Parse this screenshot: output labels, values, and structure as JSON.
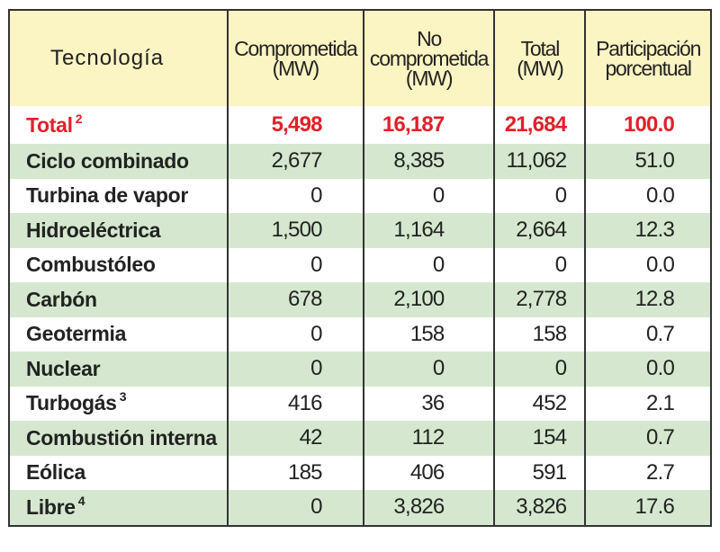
{
  "headers": {
    "tecnologia": "Tecnología",
    "comprometida": [
      "Comprometida",
      "(MW)"
    ],
    "no_comprometida": [
      "No",
      "comprometida",
      "(MW)"
    ],
    "total": [
      "Total",
      "(MW)"
    ],
    "participacion": [
      "Participación",
      "porcentual"
    ]
  },
  "rows": [
    {
      "name": "Total",
      "note": "2",
      "comprometida": "5,498",
      "no_comprometida": "16,187",
      "total": "21,684",
      "pct": "100.0"
    },
    {
      "name": "Ciclo combinado",
      "note": "",
      "comprometida": "2,677",
      "no_comprometida": "8,385",
      "total": "11,062",
      "pct": "51.0"
    },
    {
      "name": "Turbina de vapor",
      "note": "",
      "comprometida": "0",
      "no_comprometida": "0",
      "total": "0",
      "pct": "0.0"
    },
    {
      "name": "Hidroeléctrica",
      "note": "",
      "comprometida": "1,500",
      "no_comprometida": "1,164",
      "total": "2,664",
      "pct": "12.3"
    },
    {
      "name": "Combustóleo",
      "note": "",
      "comprometida": "0",
      "no_comprometida": "0",
      "total": "0",
      "pct": "0.0"
    },
    {
      "name": "Carbón",
      "note": "",
      "comprometida": "678",
      "no_comprometida": "2,100",
      "total": "2,778",
      "pct": "12.8"
    },
    {
      "name": "Geotermia",
      "note": "",
      "comprometida": "0",
      "no_comprometida": "158",
      "total": "158",
      "pct": "0.7"
    },
    {
      "name": "Nuclear",
      "note": "",
      "comprometida": "0",
      "no_comprometida": "0",
      "total": "0",
      "pct": "0.0"
    },
    {
      "name": "Turbogás",
      "note": "3",
      "comprometida": "416",
      "no_comprometida": "36",
      "total": "452",
      "pct": "2.1"
    },
    {
      "name": "Combustión interna",
      "note": "",
      "comprometida": "42",
      "no_comprometida": "112",
      "total": "154",
      "pct": "0.7"
    },
    {
      "name": "Eólica",
      "note": "",
      "comprometida": "185",
      "no_comprometida": "406",
      "total": "591",
      "pct": "2.7"
    },
    {
      "name": "Libre",
      "note": "4",
      "comprometida": "0",
      "no_comprometida": "3,826",
      "total": "3,826",
      "pct": "17.6"
    }
  ],
  "colors": {
    "header_bg": "#fbf4c3",
    "stripe": "#d5e8cf",
    "total_text": "#e0202a"
  }
}
